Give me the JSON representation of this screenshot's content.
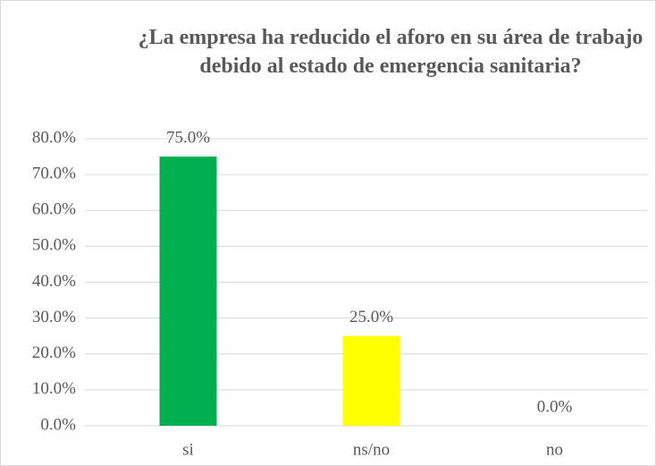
{
  "chart_data": {
    "type": "bar",
    "title": "¿La empresa ha reducido el aforo en su área de trabajo debido al estado de emergencia sanitaria?",
    "categories": [
      "si",
      "ns/no",
      "no"
    ],
    "values": [
      75,
      25,
      0
    ],
    "value_labels": [
      "75.0%",
      "25.0%",
      "0.0%"
    ],
    "colors": [
      "#00b050",
      "#ffff00",
      "#a5a5a5"
    ],
    "ylim": [
      0,
      80
    ],
    "yticks": [
      {
        "value": 0,
        "label": "0.0%"
      },
      {
        "value": 10,
        "label": "10.0%"
      },
      {
        "value": 20,
        "label": "20.0%"
      },
      {
        "value": 30,
        "label": "30.0%"
      },
      {
        "value": 40,
        "label": "40.0%"
      },
      {
        "value": 50,
        "label": "50.0%"
      },
      {
        "value": 60,
        "label": "60.0%"
      },
      {
        "value": 70,
        "label": "70.0%"
      },
      {
        "value": 80,
        "label": "80.0%"
      }
    ],
    "grid": true
  }
}
